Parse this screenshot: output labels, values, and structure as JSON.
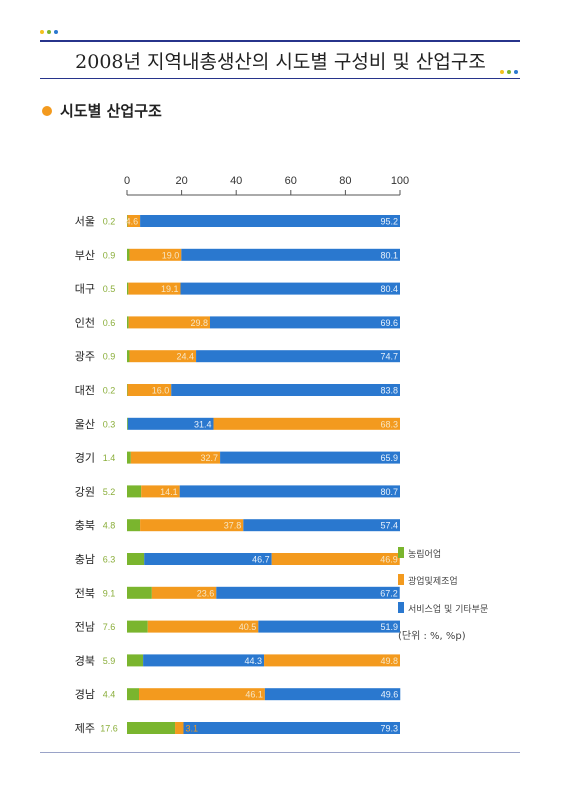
{
  "page": {
    "title": "2008년 지역내총생산의 시도별 구성비 및 산업구조",
    "section_title": "시도별 산업구조"
  },
  "colors": {
    "agriculture": "#7ab52e",
    "manufacturing": "#f39a1e",
    "services": "#2a78cf",
    "title_rule": "#27348b",
    "dot_blue": "#2a78cf",
    "dot_yellow": "#f3c21e",
    "dot_green": "#7ab52e"
  },
  "chart_data": {
    "type": "bar",
    "orientation": "horizontal",
    "stacked": true,
    "xlim": [
      0,
      100
    ],
    "x_ticks": [
      0,
      20,
      40,
      60,
      80,
      100
    ],
    "categories": [
      "서울",
      "부산",
      "대구",
      "인천",
      "광주",
      "대전",
      "울산",
      "경기",
      "강원",
      "충북",
      "충남",
      "전북",
      "전남",
      "경북",
      "경남",
      "제주"
    ],
    "series": [
      {
        "name": "농림어업",
        "color": "#7ab52e",
        "values": [
          0.2,
          0.9,
          0.5,
          0.6,
          0.9,
          0.2,
          0.3,
          1.4,
          5.2,
          4.8,
          6.3,
          9.1,
          7.6,
          5.9,
          4.4,
          17.6
        ]
      },
      {
        "name": "광업및제조업",
        "color": "#f39a1e",
        "values": [
          4.6,
          19.0,
          19.1,
          29.8,
          24.4,
          16.0,
          68.3,
          32.7,
          14.1,
          37.8,
          46.9,
          23.6,
          40.5,
          49.8,
          46.1,
          3.1
        ]
      },
      {
        "name": "서비스업 및 기타부문",
        "color": "#2a78cf",
        "values": [
          95.2,
          80.1,
          80.4,
          69.6,
          74.7,
          83.8,
          31.4,
          65.9,
          80.7,
          57.4,
          46.7,
          67.2,
          51.9,
          44.3,
          49.6,
          79.3
        ]
      }
    ],
    "display_order": [
      [
        0,
        1,
        2
      ],
      [
        0,
        1,
        2
      ],
      [
        0,
        1,
        2
      ],
      [
        0,
        1,
        2
      ],
      [
        0,
        1,
        2
      ],
      [
        0,
        1,
        2
      ],
      [
        0,
        2,
        1
      ],
      [
        0,
        1,
        2
      ],
      [
        0,
        1,
        2
      ],
      [
        0,
        1,
        2
      ],
      [
        0,
        2,
        1
      ],
      [
        0,
        1,
        2
      ],
      [
        0,
        1,
        2
      ],
      [
        0,
        2,
        1
      ],
      [
        0,
        1,
        2
      ],
      [
        0,
        1,
        2
      ]
    ],
    "legend": {
      "entries": [
        "농림어업",
        "광업및제조업",
        "서비스업 및 기타부문"
      ],
      "unit_note": "(단위 : %, %p)",
      "placement": "right"
    }
  }
}
